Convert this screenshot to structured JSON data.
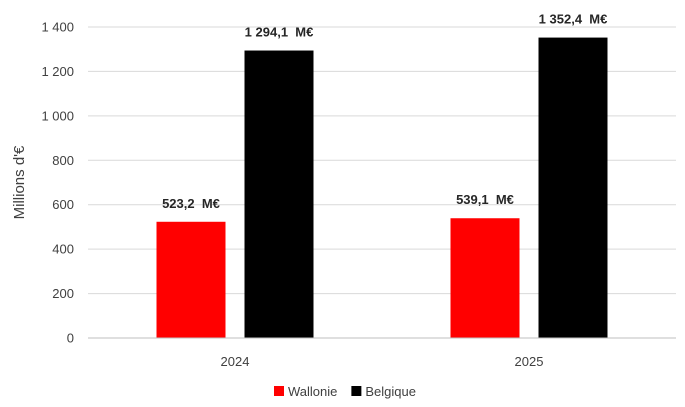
{
  "chart_data": {
    "type": "bar",
    "categories": [
      "2024",
      "2025"
    ],
    "series": [
      {
        "name": "Wallonie",
        "values": [
          523.2,
          539.1
        ],
        "labels": [
          "523,2  M€",
          "539,1  M€"
        ],
        "color": "#ff0000"
      },
      {
        "name": "Belgique",
        "values": [
          1294.1,
          1352.4
        ],
        "labels": [
          "1 294,1  M€",
          "1 352,4  M€"
        ],
        "color": "#000000"
      }
    ],
    "ylabel": "Millions d'€",
    "ylim": [
      0,
      1400
    ],
    "yticks": [
      0,
      200,
      400,
      600,
      800,
      1000,
      1200,
      1400
    ],
    "ytick_labels": [
      "0",
      "200",
      "400",
      "600",
      "800",
      "1 000",
      "1 200",
      "1 400"
    ],
    "grid": true,
    "legend_position": "bottom"
  }
}
